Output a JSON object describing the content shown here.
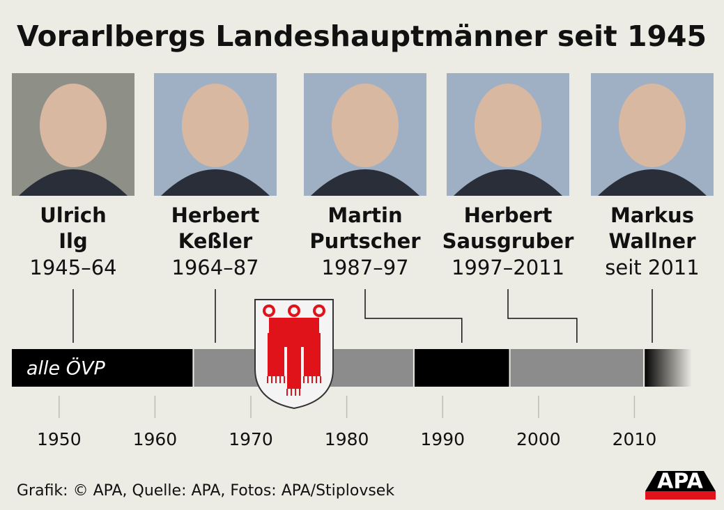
{
  "chart_data": {
    "type": "timeline",
    "title": "Vorarlbergs Landeshauptmänner seit 1945",
    "band_label": "alle ÖVP",
    "source": "Grafik: © APA, Quelle: APA, Fotos: APA/Stiplovsek",
    "logo": "APA",
    "xlim": [
      1945,
      2016
    ],
    "xticks": [
      1950,
      1960,
      1970,
      1980,
      1990,
      2000,
      2010
    ],
    "periods": [
      {
        "first": "Ulrich",
        "last": "Ilg",
        "term": "1945–64",
        "start": 1945,
        "end": 1964,
        "color": "#000000"
      },
      {
        "first": "Herbert",
        "last": "Keßler",
        "term": "1964–87",
        "start": 1964,
        "end": 1987,
        "color": "#8c8c8c"
      },
      {
        "first": "Martin",
        "last": "Purtscher",
        "term": "1987–97",
        "start": 1987,
        "end": 1997,
        "color": "#000000"
      },
      {
        "first": "Herbert",
        "last": "Sausgruber",
        "term": "1997–2011",
        "start": 1997,
        "end": 2011,
        "color": "#8c8c8c"
      },
      {
        "first": "Markus",
        "last": "Wallner",
        "term": "seit 2011",
        "start": 2011,
        "end": 2016,
        "color": "#000000",
        "ongoing": true
      }
    ]
  }
}
